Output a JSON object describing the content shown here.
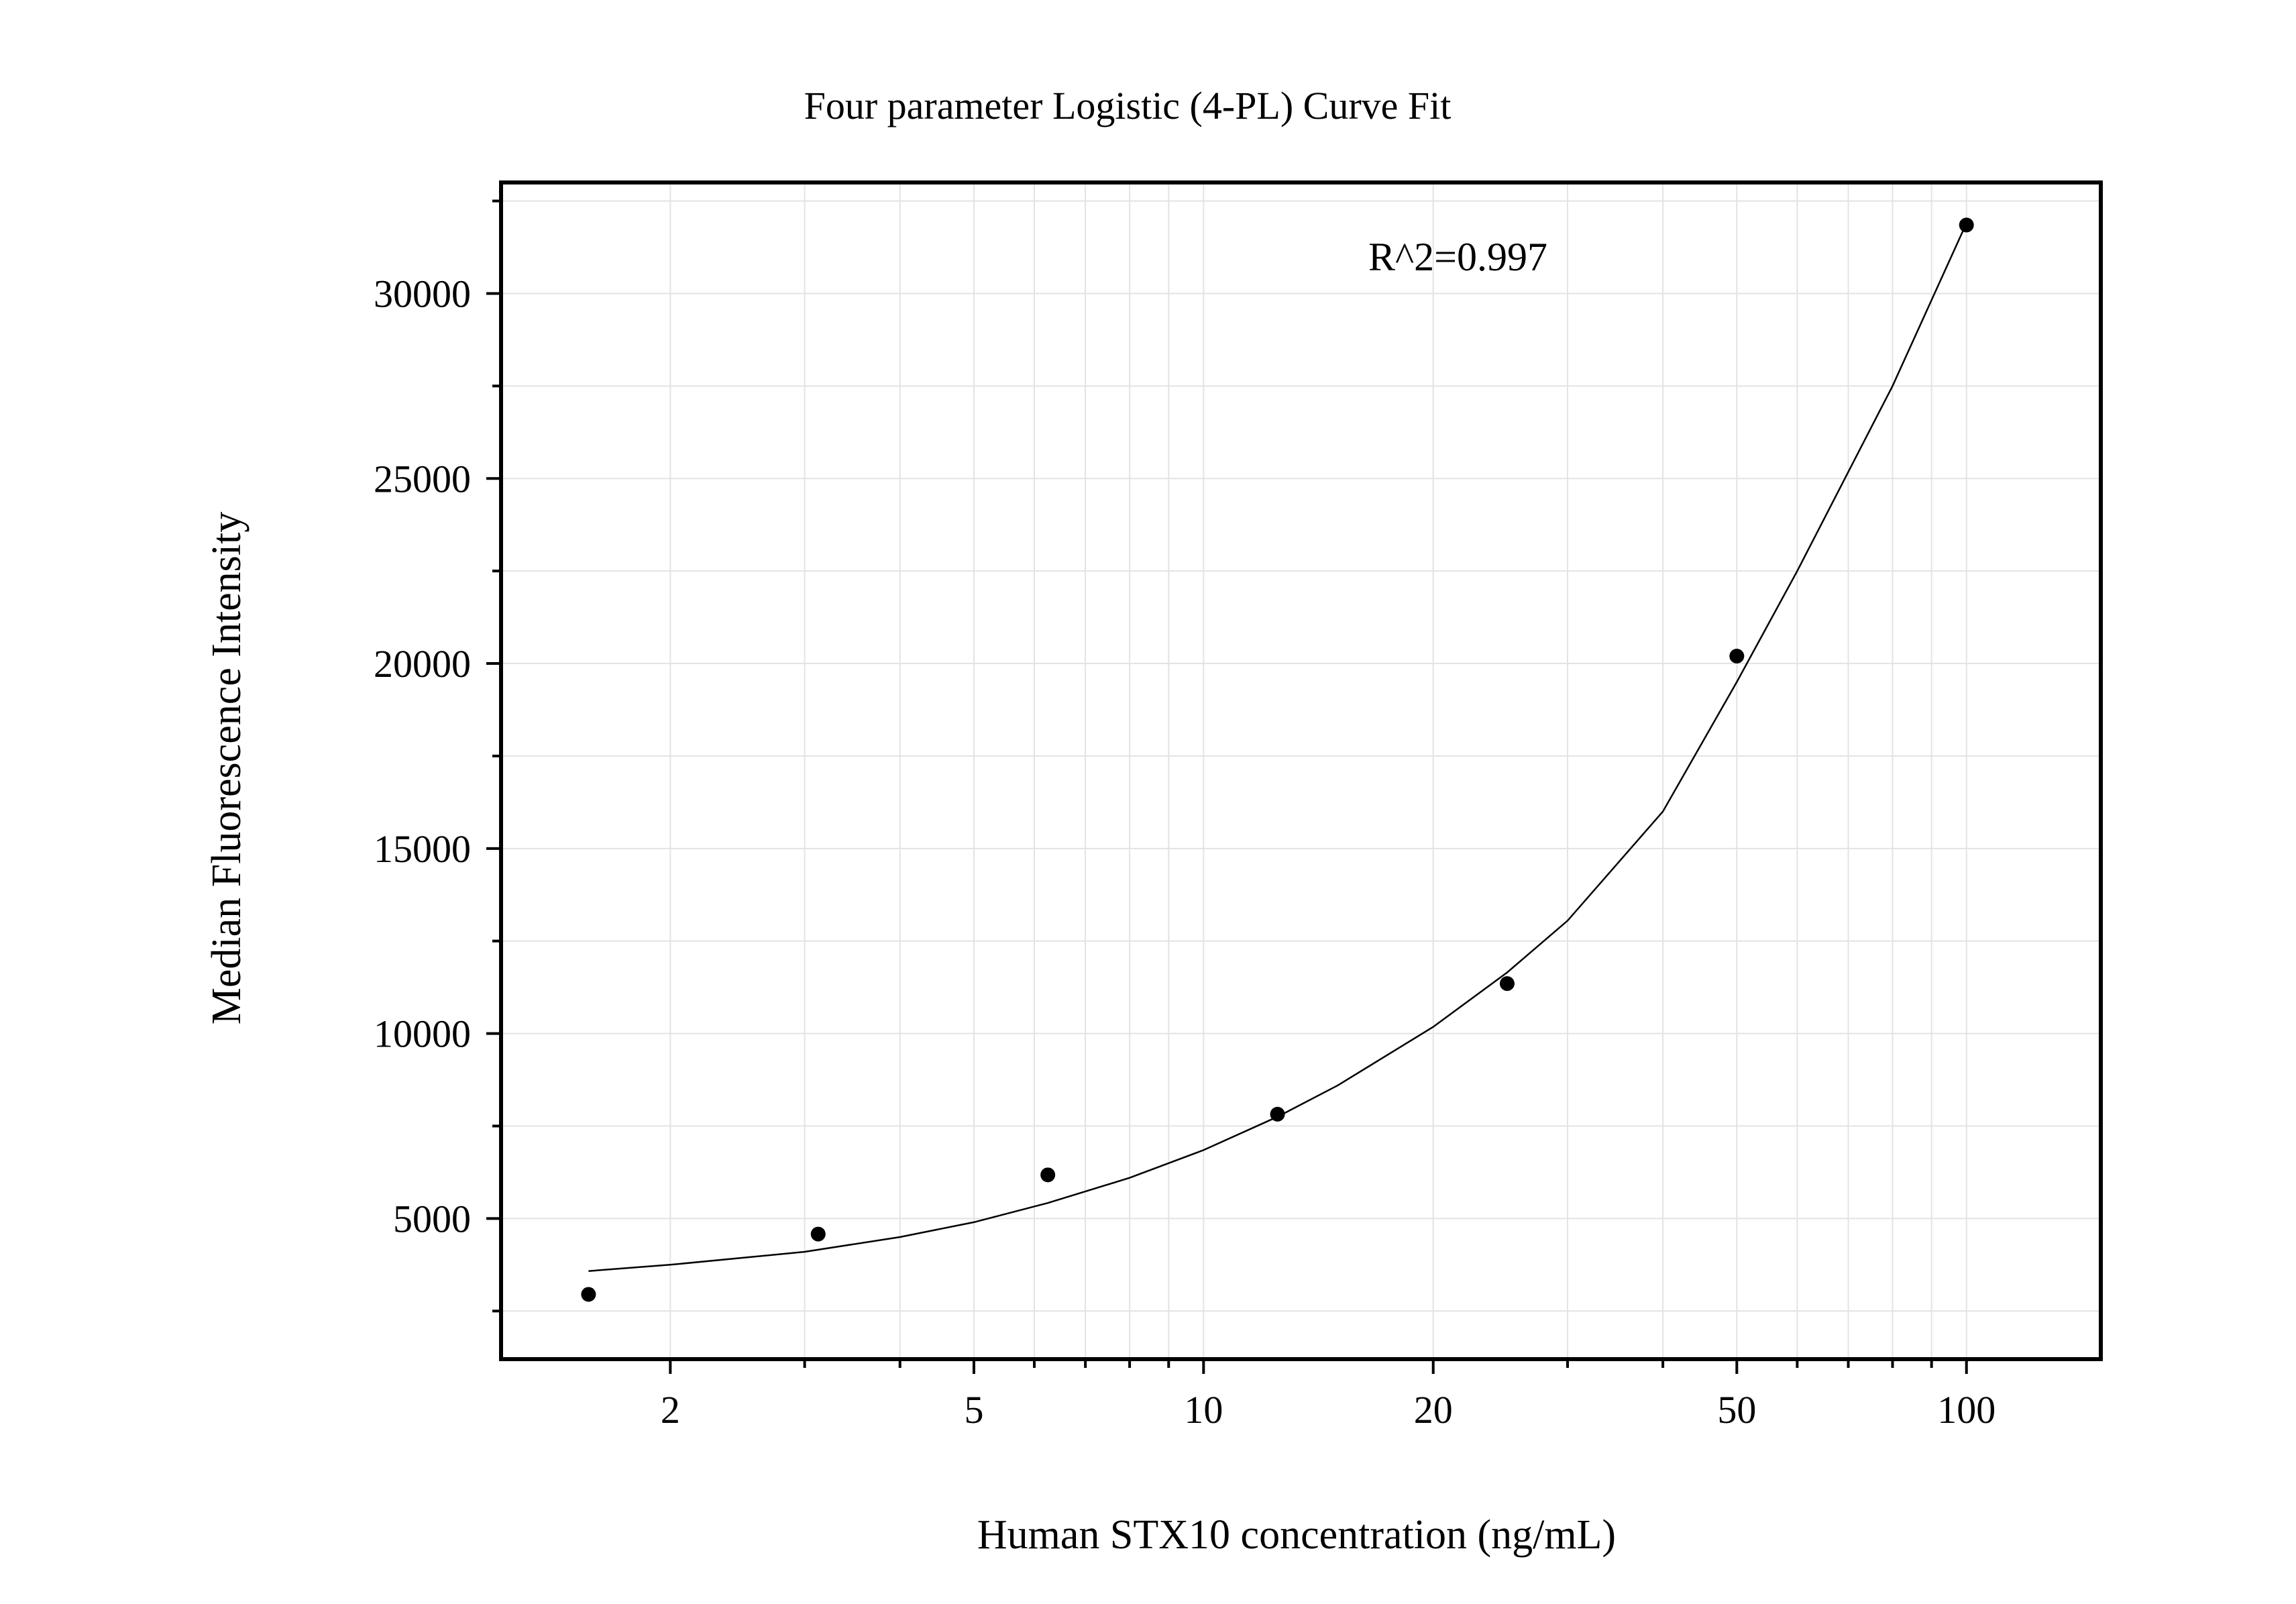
{
  "chart_data": {
    "type": "scatter",
    "title": "Four parameter Logistic (4-PL) Curve Fit",
    "xlabel": "Human STX10 concentration (ng/mL)",
    "ylabel": "Median Fluorescence Intensity",
    "x_scale": "log",
    "xlim": [
      1.2,
      150
    ],
    "ylim": [
      1200,
      33000
    ],
    "x_ticks": [
      2,
      5,
      10,
      20,
      50,
      100
    ],
    "x_tick_labels": [
      "2",
      "5",
      "10",
      "20",
      "50",
      "100"
    ],
    "y_ticks": [
      5000,
      10000,
      15000,
      20000,
      25000,
      30000
    ],
    "y_tick_labels": [
      "5000",
      "10000",
      "15000",
      "20000",
      "25000",
      "30000"
    ],
    "grid": true,
    "annotation": "R^2=0.997",
    "points": {
      "x": [
        1.5625,
        3.125,
        6.25,
        12.5,
        25,
        50,
        100
      ],
      "y": [
        2950,
        4580,
        6180,
        7820,
        11350,
        20200,
        31850
      ]
    },
    "fit_curve": {
      "x": [
        1.5625,
        2,
        3,
        4,
        5,
        6.25,
        8,
        10,
        12.5,
        15,
        20,
        25,
        30,
        40,
        50,
        60,
        80,
        100
      ],
      "y": [
        3580,
        3750,
        4100,
        4500,
        4900,
        5420,
        6100,
        6850,
        7750,
        8600,
        10180,
        11650,
        13050,
        16000,
        19500,
        22500,
        27500,
        31900
      ]
    },
    "colors": {
      "points": "#000000",
      "curve": "#000000",
      "grid": "#e3e3e3",
      "frame": "#000000"
    }
  }
}
